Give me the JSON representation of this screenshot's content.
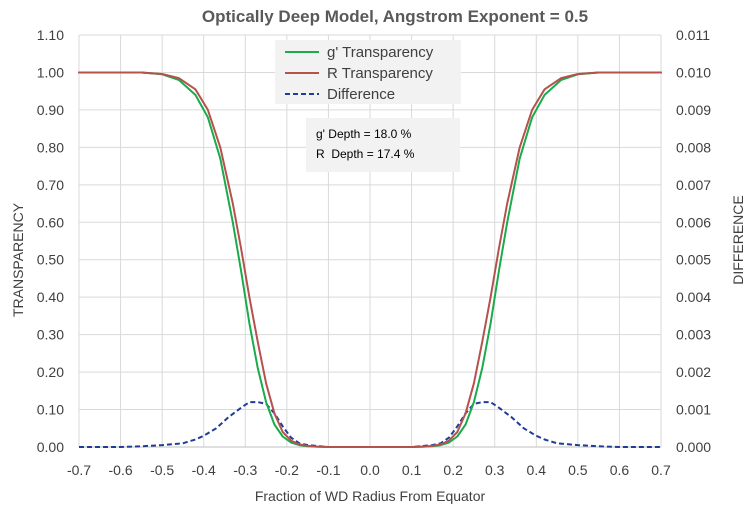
{
  "chart_data": {
    "type": "line",
    "title": "Optically Deep Model, Angstrom Exponent = 0.5",
    "xlabel": "Fraction of WD Radius From Equator",
    "ylabel": "TRANSPARENCY",
    "y2label": "DIFFERENCE",
    "xlim": [
      -0.7,
      0.7
    ],
    "ylim": [
      0,
      1.1
    ],
    "y2lim": [
      0,
      0.011
    ],
    "x_ticks": [
      "-0.7",
      "-0.6",
      "-0.5",
      "-0.4",
      "-0.3",
      "-0.2",
      "-0.1",
      "0.0",
      "0.1",
      "0.2",
      "0.3",
      "0.4",
      "0.5",
      "0.6",
      "0.7"
    ],
    "y_ticks": [
      "0.00",
      "0.10",
      "0.20",
      "0.30",
      "0.40",
      "0.50",
      "0.60",
      "0.70",
      "0.80",
      "0.90",
      "1.00",
      "1.10"
    ],
    "y2_ticks": [
      "0.000",
      "0.001",
      "0.002",
      "0.003",
      "0.004",
      "0.005",
      "0.006",
      "0.007",
      "0.008",
      "0.009",
      "0.010",
      "0.011"
    ],
    "grid": true,
    "legend_position": "top-center",
    "series": [
      {
        "name": "g' Transparency",
        "axis": "left",
        "color": "#1aab4b",
        "style": "solid",
        "x": [
          -0.7,
          -0.55,
          -0.5,
          -0.46,
          -0.42,
          -0.39,
          -0.36,
          -0.33,
          -0.31,
          -0.29,
          -0.27,
          -0.25,
          -0.23,
          -0.21,
          -0.19,
          -0.17,
          -0.15,
          -0.13,
          -0.1,
          -0.05,
          0.0,
          0.05,
          0.1,
          0.13,
          0.15,
          0.17,
          0.19,
          0.21,
          0.23,
          0.25,
          0.27,
          0.29,
          0.31,
          0.33,
          0.36,
          0.39,
          0.42,
          0.46,
          0.5,
          0.55,
          0.7
        ],
        "values": [
          1.0,
          1.0,
          0.995,
          0.98,
          0.94,
          0.88,
          0.77,
          0.6,
          0.47,
          0.33,
          0.21,
          0.12,
          0.06,
          0.028,
          0.012,
          0.005,
          0.002,
          0.001,
          0.0,
          0.0,
          0.0,
          0.0,
          0.0,
          0.001,
          0.002,
          0.005,
          0.012,
          0.028,
          0.06,
          0.12,
          0.21,
          0.33,
          0.47,
          0.6,
          0.77,
          0.88,
          0.94,
          0.98,
          0.995,
          1.0,
          1.0
        ]
      },
      {
        "name": "R Transparency",
        "axis": "left",
        "color": "#b5524d",
        "style": "solid",
        "x": [
          -0.7,
          -0.55,
          -0.5,
          -0.46,
          -0.42,
          -0.39,
          -0.36,
          -0.33,
          -0.31,
          -0.29,
          -0.27,
          -0.25,
          -0.23,
          -0.21,
          -0.19,
          -0.17,
          -0.15,
          -0.13,
          -0.1,
          -0.05,
          0.0,
          0.05,
          0.1,
          0.13,
          0.15,
          0.17,
          0.19,
          0.21,
          0.23,
          0.25,
          0.27,
          0.29,
          0.31,
          0.33,
          0.36,
          0.39,
          0.42,
          0.46,
          0.5,
          0.55,
          0.7
        ],
        "values": [
          1.0,
          1.0,
          0.996,
          0.985,
          0.955,
          0.9,
          0.8,
          0.65,
          0.53,
          0.4,
          0.28,
          0.17,
          0.09,
          0.04,
          0.017,
          0.007,
          0.003,
          0.001,
          0.0,
          0.0,
          0.0,
          0.0,
          0.0,
          0.001,
          0.003,
          0.007,
          0.017,
          0.04,
          0.09,
          0.17,
          0.28,
          0.4,
          0.53,
          0.65,
          0.8,
          0.9,
          0.955,
          0.985,
          0.996,
          1.0,
          1.0
        ]
      },
      {
        "name": "Difference",
        "axis": "right",
        "color": "#1f3c99",
        "style": "dashed",
        "x": [
          -0.7,
          -0.6,
          -0.55,
          -0.5,
          -0.45,
          -0.42,
          -0.4,
          -0.37,
          -0.34,
          -0.31,
          -0.29,
          -0.27,
          -0.25,
          -0.23,
          -0.21,
          -0.19,
          -0.17,
          -0.15,
          -0.12,
          -0.1,
          -0.05,
          0.0,
          0.05,
          0.1,
          0.12,
          0.15,
          0.17,
          0.19,
          0.21,
          0.23,
          0.25,
          0.27,
          0.29,
          0.31,
          0.34,
          0.37,
          0.4,
          0.42,
          0.45,
          0.5,
          0.55,
          0.6,
          0.7
        ],
        "values": [
          0.0,
          0.0,
          2e-05,
          5e-05,
          0.0001,
          0.0002,
          0.0003,
          0.0005,
          0.0008,
          0.00105,
          0.0012,
          0.0012,
          0.00115,
          0.0009,
          0.00055,
          0.00025,
          0.0001,
          5e-05,
          2e-05,
          0.0,
          0.0,
          0.0,
          0.0,
          0.0,
          2e-05,
          5e-05,
          0.0001,
          0.00025,
          0.00055,
          0.0009,
          0.00115,
          0.0012,
          0.0012,
          0.00105,
          0.0008,
          0.0005,
          0.0003,
          0.0002,
          0.0001,
          5e-05,
          2e-05,
          0.0,
          0.0
        ]
      }
    ],
    "annotations": [
      "g' Depth = 18.0 %",
      "R  Depth = 17.4 %"
    ]
  }
}
